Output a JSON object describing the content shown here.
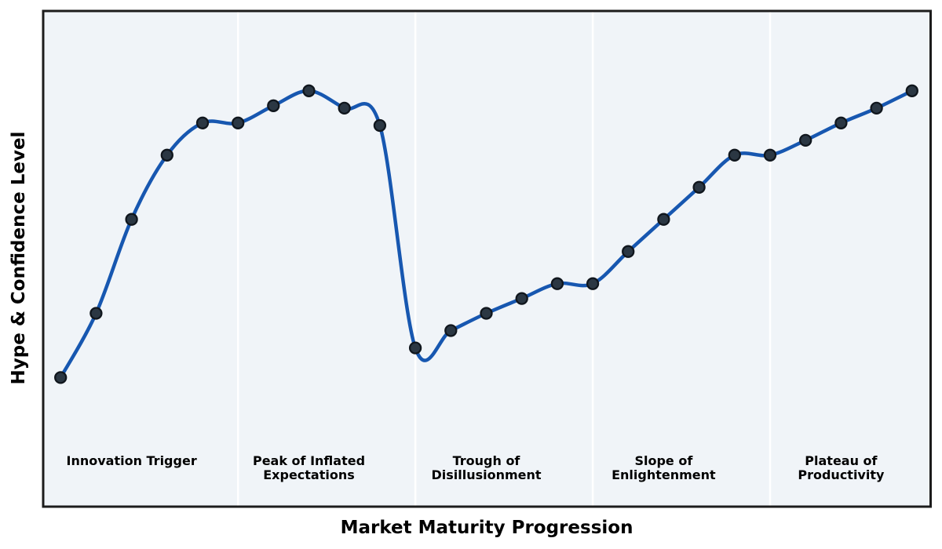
{
  "figure": {
    "xlabel": "Market Maturity Progression",
    "ylabel": "Hype & Confidence Level"
  },
  "phases": [
    {
      "label": "Innovation Trigger"
    },
    {
      "label": "Peak of Inflated\nExpectations"
    },
    {
      "label": "Trough of\nDisillusionment"
    },
    {
      "label": "Slope of\nEnlightenment"
    },
    {
      "label": "Plateau of\nProductivity"
    }
  ],
  "chart_data": {
    "type": "line",
    "title": "",
    "xlabel": "Market Maturity Progression",
    "ylabel": "Hype & Confidence Level",
    "x": [
      0,
      1,
      2,
      3,
      4,
      5,
      6,
      7,
      8,
      9,
      10,
      11,
      12,
      13,
      14,
      15,
      16,
      17,
      18,
      19,
      20,
      21,
      22,
      23,
      24
    ],
    "y": [
      26,
      39,
      58,
      71,
      77.5,
      77.5,
      81,
      84,
      80.5,
      77,
      32,
      35.5,
      39,
      42,
      45,
      45,
      51.5,
      58,
      64.5,
      71,
      71,
      74,
      77.5,
      80.5,
      84
    ],
    "ylim": [
      0,
      100
    ],
    "xlim": [
      -0.5,
      24.5
    ],
    "grid": false,
    "legend": false,
    "smoothing": "cubic-spline",
    "phase_boundaries_x": [
      5,
      10,
      15,
      20
    ],
    "phase_label_x": [
      2,
      7,
      12,
      17,
      22
    ],
    "colors": {
      "line": "#1757b0",
      "marker_fill": "#2b3743",
      "marker_edge": "#10161d",
      "plot_background": "#f0f4f8",
      "phase_separator": "#ffffff",
      "frame": "#1c1c1c",
      "text": "#000000"
    }
  }
}
